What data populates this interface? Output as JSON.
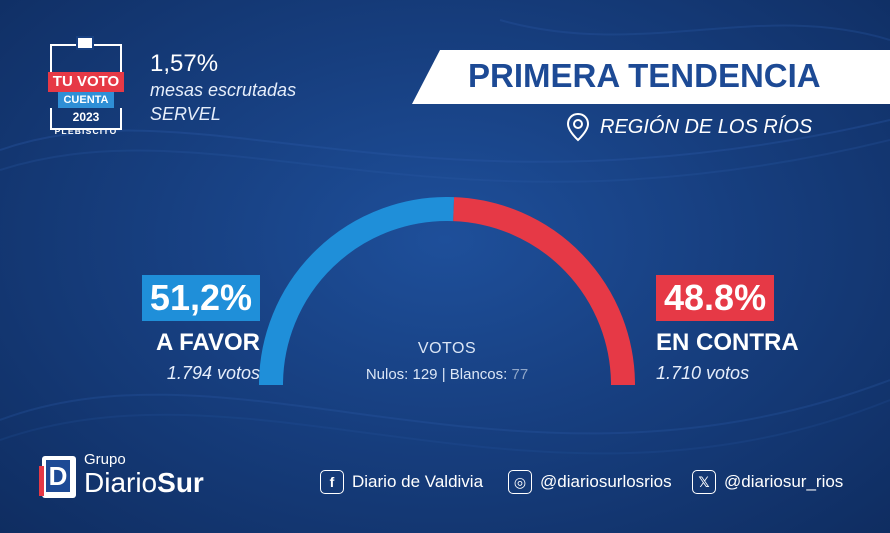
{
  "logo": {
    "line1": "TU VOTO",
    "line2": "CUENTA",
    "line3": "2023",
    "line4": "PLEBISCITO"
  },
  "progress": {
    "percent": "1,57%",
    "line1": "mesas escrutadas",
    "line2": "SERVEL"
  },
  "title": "PRIMERA TENDENCIA",
  "region": "REGIÓN DE LOS RÍOS",
  "favor": {
    "percent": "51,2%",
    "label": "A FAVOR",
    "votes": "1.794 votos",
    "share": 51.2,
    "color": "#1f8fd9"
  },
  "contra": {
    "percent": "48.8%",
    "label": "EN CONTRA",
    "votes": "1.710 votos",
    "share": 48.8,
    "color": "#e63946"
  },
  "center": {
    "heading": "VOTOS",
    "nulos_label": "Nulos: 129",
    "separator": " | ",
    "blancos_label": "Blancos:",
    "blancos_value": "77"
  },
  "brand": {
    "small": "Grupo",
    "big_regular": "Diario",
    "big_bold": "Sur",
    "mark": "D"
  },
  "social": [
    {
      "icon": "facebook-icon",
      "glyph": "f",
      "text": "Diario de Valdivia"
    },
    {
      "icon": "instagram-icon",
      "glyph": "◎",
      "text": "@diariosurlosrios"
    },
    {
      "icon": "x-icon",
      "glyph": "𝕏",
      "text": "@diariosur_rios"
    }
  ]
}
